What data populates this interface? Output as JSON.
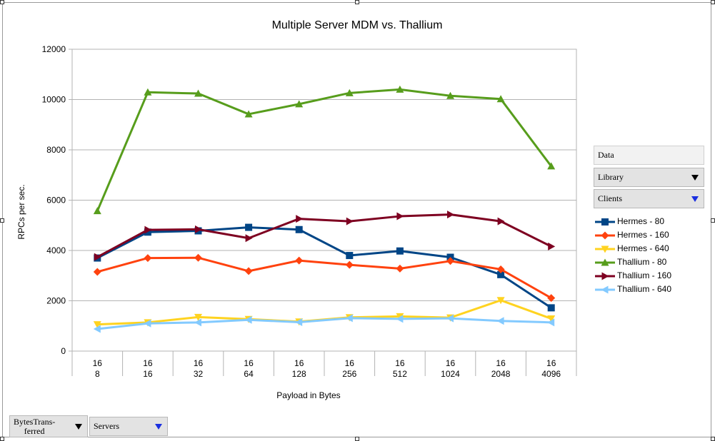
{
  "chart_data": {
    "type": "line",
    "title": "Multiple Server MDM vs. Thallium",
    "xlabel": "Payload in Bytes",
    "ylabel": "RPCs per sec.",
    "ylim": [
      0,
      12000
    ],
    "yticks": [
      0,
      2000,
      4000,
      6000,
      8000,
      10000,
      12000
    ],
    "grid": "horizontal",
    "legend_position": "right",
    "categories": [
      [
        "16",
        "8"
      ],
      [
        "16",
        "16"
      ],
      [
        "16",
        "32"
      ],
      [
        "16",
        "64"
      ],
      [
        "16",
        "128"
      ],
      [
        "16",
        "256"
      ],
      [
        "16",
        "512"
      ],
      [
        "16",
        "1024"
      ],
      [
        "16",
        "2048"
      ],
      [
        "16",
        "4096"
      ]
    ],
    "series": [
      {
        "name": "Hermes - 80",
        "color": "#004586",
        "marker": "square",
        "values": [
          3700,
          4730,
          4780,
          4920,
          4830,
          3800,
          3980,
          3730,
          3040,
          1720
        ]
      },
      {
        "name": "Hermes - 160",
        "color": "#ff420e",
        "marker": "diamond",
        "values": [
          3150,
          3700,
          3710,
          3180,
          3600,
          3430,
          3280,
          3580,
          3250,
          2110
        ]
      },
      {
        "name": "Hermes - 640",
        "color": "#ffd320",
        "marker": "triangle-down",
        "values": [
          1060,
          1140,
          1350,
          1270,
          1170,
          1340,
          1380,
          1330,
          2020,
          1290
        ]
      },
      {
        "name": "Thallium - 80",
        "color": "#579d1c",
        "marker": "triangle-up",
        "values": [
          5570,
          10290,
          10240,
          9420,
          9820,
          10260,
          10400,
          10150,
          10020,
          7350
        ]
      },
      {
        "name": "Thallium - 160",
        "color": "#7e0021",
        "marker": "triangle-right",
        "values": [
          3740,
          4820,
          4840,
          4490,
          5260,
          5160,
          5360,
          5430,
          5160,
          4160
        ]
      },
      {
        "name": "Thallium - 640",
        "color": "#83caff",
        "marker": "triangle-left",
        "values": [
          880,
          1100,
          1140,
          1240,
          1150,
          1310,
          1280,
          1300,
          1200,
          1140
        ]
      }
    ]
  },
  "pivot": {
    "data_field": "Data",
    "row_fields": [
      {
        "label": "Library",
        "arrow": "black"
      },
      {
        "label": "Clients",
        "arrow": "blue"
      }
    ],
    "column_fields": [
      {
        "label": "BytesTrans-\nferred",
        "arrow": "black"
      },
      {
        "label": "Servers",
        "arrow": "blue"
      }
    ]
  }
}
